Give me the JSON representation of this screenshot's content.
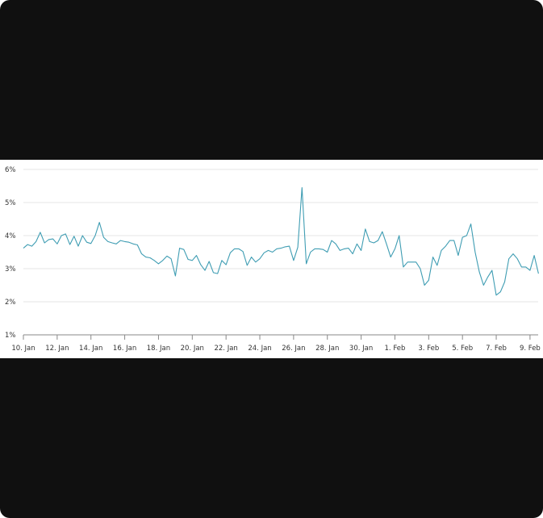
{
  "chart_data": {
    "type": "line",
    "title": "",
    "xlabel": "",
    "ylabel": "",
    "ylim": [
      1,
      6
    ],
    "y_ticks": [
      "1%",
      "2%",
      "3%",
      "4%",
      "5%",
      "6%"
    ],
    "y_tick_values": [
      1,
      2,
      3,
      4,
      5,
      6
    ],
    "x_ticks": [
      "10. Jan",
      "12. Jan",
      "14. Jan",
      "16. Jan",
      "18. Jan",
      "20. Jan",
      "22. Jan",
      "24. Jan",
      "26. Jan",
      "28. Jan",
      "30. Jan",
      "1. Feb",
      "3. Feb",
      "5. Feb",
      "7. Feb",
      "9. Feb"
    ],
    "grid": true,
    "legend": "none",
    "line_color": "#3f9db3",
    "sample_hours": [
      0,
      6,
      12,
      18
    ],
    "series": [
      {
        "days": [
          {
            "date": "10. Jan",
            "values": [
              3.62,
              3.73,
              3.68,
              3.82
            ]
          },
          {
            "date": "11. Jan",
            "values": [
              4.1,
              3.78,
              3.88,
              3.9
            ]
          },
          {
            "date": "12. Jan",
            "values": [
              3.75,
              4.0,
              4.05,
              3.73
            ]
          },
          {
            "date": "13. Jan",
            "values": [
              3.98,
              3.68,
              4.0,
              3.8
            ]
          },
          {
            "date": "14. Jan",
            "values": [
              3.76,
              4.0,
              4.4,
              3.95
            ]
          },
          {
            "date": "15. Jan",
            "values": [
              3.82,
              3.78,
              3.75,
              3.85
            ]
          },
          {
            "date": "16. Jan",
            "values": [
              3.82,
              3.8,
              3.75,
              3.72
            ]
          },
          {
            "date": "17. Jan",
            "values": [
              3.45,
              3.35,
              3.33,
              3.25
            ]
          },
          {
            "date": "18. Jan",
            "values": [
              3.15,
              3.25,
              3.38,
              3.3
            ]
          },
          {
            "date": "19. Jan",
            "values": [
              2.78,
              3.62,
              3.58,
              3.28
            ]
          },
          {
            "date": "20. Jan",
            "values": [
              3.25,
              3.4,
              3.12,
              2.95
            ]
          },
          {
            "date": "21. Jan",
            "values": [
              3.22,
              2.88,
              2.85,
              3.25
            ]
          },
          {
            "date": "22. Jan",
            "values": [
              3.12,
              3.48,
              3.6,
              3.6
            ]
          },
          {
            "date": "23. Jan",
            "values": [
              3.52,
              3.1,
              3.35,
              3.2
            ]
          },
          {
            "date": "24. Jan",
            "values": [
              3.3,
              3.48,
              3.55,
              3.5
            ]
          },
          {
            "date": "25. Jan",
            "values": [
              3.6,
              3.62,
              3.66,
              3.68
            ]
          },
          {
            "date": "26. Jan",
            "values": [
              3.25,
              3.65,
              5.45,
              3.15
            ]
          },
          {
            "date": "27. Jan",
            "values": [
              3.5,
              3.6,
              3.6,
              3.58
            ]
          },
          {
            "date": "28. Jan",
            "values": [
              3.5,
              3.85,
              3.75,
              3.55
            ]
          },
          {
            "date": "29. Jan",
            "values": [
              3.6,
              3.62,
              3.45,
              3.75
            ]
          },
          {
            "date": "30. Jan",
            "values": [
              3.55,
              4.2,
              3.82,
              3.78
            ]
          },
          {
            "date": "31. Jan",
            "values": [
              3.85,
              4.12,
              3.75,
              3.35
            ]
          },
          {
            "date": "1. Feb",
            "values": [
              3.6,
              4.0,
              3.05,
              3.2
            ]
          },
          {
            "date": "2. Feb",
            "values": [
              3.2,
              3.2,
              3.0,
              2.5
            ]
          },
          {
            "date": "3. Feb",
            "values": [
              2.65,
              3.35,
              3.1,
              3.55
            ]
          },
          {
            "date": "4. Feb",
            "values": [
              3.68,
              3.85,
              3.85,
              3.4
            ]
          },
          {
            "date": "5. Feb",
            "values": [
              3.95,
              4.0,
              4.35,
              3.5
            ]
          },
          {
            "date": "6. Feb",
            "values": [
              2.9,
              2.5,
              2.75,
              2.95
            ]
          },
          {
            "date": "7. Feb",
            "values": [
              2.2,
              2.3,
              2.6,
              3.3
            ]
          },
          {
            "date": "8. Feb",
            "values": [
              3.45,
              3.3,
              3.05,
              3.05
            ]
          },
          {
            "date": "9. Feb",
            "values": [
              2.95,
              3.4,
              2.85
            ]
          }
        ]
      }
    ]
  }
}
